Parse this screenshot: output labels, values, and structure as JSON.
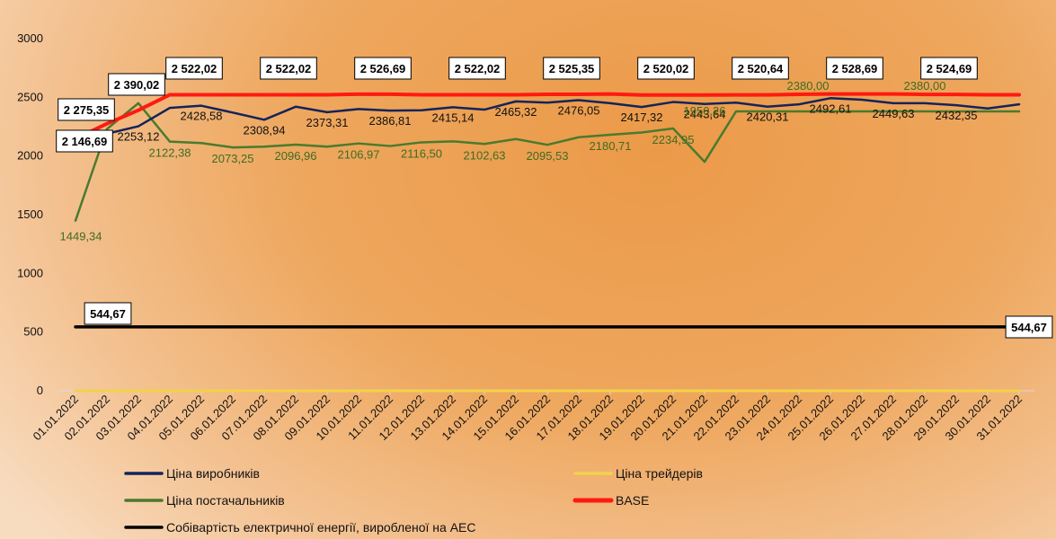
{
  "chart_data": {
    "type": "line",
    "title": "",
    "xlabel": "",
    "ylabel": "",
    "ylim": [
      0,
      3000
    ],
    "y_ticks": [
      0,
      500,
      1000,
      1500,
      2000,
      2500,
      3000
    ],
    "grid": false,
    "legend_position": "bottom",
    "categories": [
      "01.01.2022",
      "02.01.2022",
      "03.01.2022",
      "04.01.2022",
      "05.01.2022",
      "06.01.2022",
      "07.01.2022",
      "08.01.2022",
      "09.01.2022",
      "10.01.2022",
      "11.01.2022",
      "12.01.2022",
      "13.01.2022",
      "14.01.2022",
      "15.01.2022",
      "16.01.2022",
      "17.01.2022",
      "18.01.2022",
      "19.01.2022",
      "20.01.2022",
      "21.01.2022",
      "22.01.2022",
      "23.01.2022",
      "24.01.2022",
      "25.01.2022",
      "26.01.2022",
      "27.01.2022",
      "28.01.2022",
      "29.01.2022",
      "30.01.2022",
      "31.01.2022"
    ],
    "series": [
      {
        "name": "Ціна виробників",
        "color": "#13245a",
        "values": [
          2146.69,
          2190,
          2253.12,
          2410,
          2428.58,
          2370,
          2308.94,
          2420,
          2373.31,
          2400,
          2386.81,
          2390,
          2415.14,
          2395,
          2465.32,
          2455,
          2476.05,
          2450,
          2417.32,
          2460,
          2443.64,
          2455,
          2420.31,
          2440,
          2492.61,
          2480,
          2449.63,
          2450,
          2432.35,
          2405,
          2440
        ],
        "labels": [
          {
            "i": 2,
            "text": "2253,12"
          },
          {
            "i": 4,
            "text": "2428,58"
          },
          {
            "i": 6,
            "text": "2308,94"
          },
          {
            "i": 8,
            "text": "2373,31"
          },
          {
            "i": 10,
            "text": "2386,81"
          },
          {
            "i": 12,
            "text": "2415,14"
          },
          {
            "i": 14,
            "text": "2465,32"
          },
          {
            "i": 16,
            "text": "2476,05"
          },
          {
            "i": 18,
            "text": "2417,32"
          },
          {
            "i": 20,
            "text": "2443,64"
          },
          {
            "i": 22,
            "text": "2420,31"
          },
          {
            "i": 24,
            "text": "2492,61"
          },
          {
            "i": 26,
            "text": "2449,63"
          },
          {
            "i": 28,
            "text": "2432,35"
          }
        ]
      },
      {
        "name": "Ціна трейдерів",
        "color": "#f2d24a",
        "values": [
          0,
          0,
          0,
          0,
          0,
          0,
          0,
          0,
          0,
          0,
          0,
          0,
          0,
          0,
          0,
          0,
          0,
          0,
          0,
          0,
          0,
          0,
          0,
          0,
          0,
          0,
          0,
          0,
          0,
          0,
          0
        ],
        "labels": []
      },
      {
        "name": "Ціна постачальників",
        "color": "#4a7a2e",
        "values": [
          1449.34,
          2230,
          2450,
          2122.38,
          2110,
          2073.25,
          2080,
          2096.96,
          2080,
          2106.97,
          2085,
          2116.5,
          2125,
          2102.63,
          2145,
          2095.53,
          2160,
          2180.71,
          2200,
          2234.95,
          1950.26,
          2380,
          2380,
          2380.0,
          2380,
          2380,
          2380,
          2380.0,
          2380,
          2380,
          2380
        ],
        "labels": [
          {
            "i": 0,
            "text": "1449,34"
          },
          {
            "i": 3,
            "text": "2122,38"
          },
          {
            "i": 5,
            "text": "2073,25"
          },
          {
            "i": 7,
            "text": "2096,96"
          },
          {
            "i": 9,
            "text": "2106,97"
          },
          {
            "i": 11,
            "text": "2116,50"
          },
          {
            "i": 13,
            "text": "2102,63"
          },
          {
            "i": 15,
            "text": "2095,53"
          },
          {
            "i": 17,
            "text": "2180,71"
          },
          {
            "i": 19,
            "text": "2234,95"
          },
          {
            "i": 20,
            "text": "1950,26"
          },
          {
            "i": 23,
            "text": "2380,00"
          },
          {
            "i": 27,
            "text": "2380,00"
          }
        ]
      },
      {
        "name": "BASE",
        "color": "#ff1a10",
        "values": [
          2146.69,
          2275.35,
          2390.02,
          2522.02,
          2522.02,
          2522.02,
          2522.02,
          2522.02,
          2522.02,
          2526.69,
          2526.69,
          2522.02,
          2522.02,
          2522.02,
          2522.02,
          2525.35,
          2525.35,
          2528.69,
          2520.02,
          2520.02,
          2520.02,
          2520.64,
          2520.64,
          2525.35,
          2528.69,
          2528.69,
          2528.69,
          2524.69,
          2524.69,
          2522.02,
          2522.02
        ],
        "labels": [
          {
            "i": 0,
            "text": "2 146,69"
          },
          {
            "i": 1,
            "text": "2 275,35"
          },
          {
            "i": 2,
            "text": "2 390,02"
          },
          {
            "i": 4,
            "text": "2 522,02"
          },
          {
            "i": 7,
            "text": "2 522,02"
          },
          {
            "i": 10,
            "text": "2 526,69"
          },
          {
            "i": 13,
            "text": "2 522,02"
          },
          {
            "i": 16,
            "text": "2 525,35"
          },
          {
            "i": 19,
            "text": "2 520,02"
          },
          {
            "i": 22,
            "text": "2 520,64"
          },
          {
            "i": 25,
            "text": "2 528,69"
          },
          {
            "i": 28,
            "text": "2 524,69"
          }
        ]
      },
      {
        "name": "Собівартість електричної енергії, виробленої на АЕС",
        "color": "#000000",
        "values": [
          544.67,
          544.67,
          544.67,
          544.67,
          544.67,
          544.67,
          544.67,
          544.67,
          544.67,
          544.67,
          544.67,
          544.67,
          544.67,
          544.67,
          544.67,
          544.67,
          544.67,
          544.67,
          544.67,
          544.67,
          544.67,
          544.67,
          544.67,
          544.67,
          544.67,
          544.67,
          544.67,
          544.67,
          544.67,
          544.67,
          544.67
        ],
        "labels": [
          {
            "i": 0,
            "text": "544,67"
          },
          {
            "i": 30,
            "text": "544,67"
          }
        ]
      }
    ]
  }
}
